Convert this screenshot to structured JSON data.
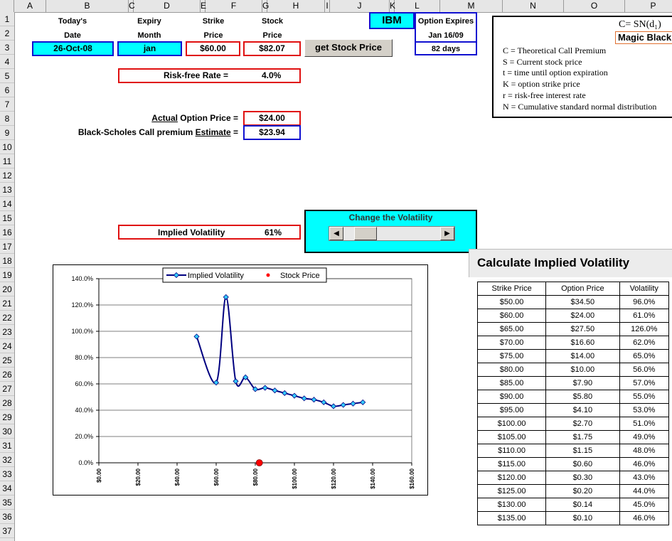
{
  "columns": [
    "A",
    "B",
    "C",
    "D",
    "E",
    "F",
    "G",
    "H",
    "I",
    "J",
    "K",
    "L",
    "M",
    "N",
    "O",
    "P"
  ],
  "rows": [
    "1",
    "2",
    "3",
    "4",
    "5",
    "6",
    "7",
    "8",
    "9",
    "10",
    "11",
    "12",
    "13",
    "14",
    "15",
    "16",
    "17",
    "18",
    "19",
    "20",
    "21",
    "22",
    "23",
    "24",
    "25",
    "26",
    "27",
    "28",
    "29",
    "30",
    "31",
    "32",
    "33",
    "34",
    "35",
    "36",
    "37"
  ],
  "inputs": {
    "today_label_1": "Today's",
    "today_label_2": "Date",
    "today_value": "26-Oct-08",
    "expiry_label_1": "Expiry",
    "expiry_label_2": "Month",
    "expiry_value": "jan",
    "strike_label_1": "Strike",
    "strike_label_2": "Price",
    "strike_value": "$60.00",
    "stock_label_1": "Stock",
    "stock_label_2": "Price",
    "stock_value": "$82.07",
    "get_stock_button": "get Stock Price",
    "ticker": "IBM",
    "option_expires_label": "Option Expires",
    "option_expires_date": "Jan 16/09",
    "days_remaining": "82 days",
    "risk_free_label": "Risk-free Rate =",
    "risk_free_value": "4.0%",
    "actual_label_underlined": "Actual",
    "actual_label_rest": " Option Price =",
    "actual_value": "$24.00",
    "bs_label_prefix": "Black-Scholes Call premium ",
    "bs_label_underlined": "Estimate",
    "bs_label_suffix": " =",
    "bs_value": "$23.94",
    "implied_vol_label": "Implied Volatility",
    "implied_vol_value": "61%"
  },
  "formula_box": {
    "formula": "C= SN(d₁)",
    "magic_label": "Magic Black",
    "legend": [
      "C = Theoretical Call Premium",
      "S = Current stock price",
      "t  = time until option expiration",
      "K = option strike price",
      "r  = risk-free interest rate",
      "N = Cumulative standard normal distribution"
    ]
  },
  "volatility_control": {
    "title": "Change the Volatility",
    "left_arrow": "◀",
    "right_arrow": "▶",
    "thumb_fraction": 0.14
  },
  "calc_title": "Calculate Implied Volatility",
  "table": {
    "headers": [
      "Strike Price",
      "Option Price",
      "Volatility"
    ],
    "rows": [
      [
        "$50.00",
        "$34.50",
        "96.0%"
      ],
      [
        "$60.00",
        "$24.00",
        "61.0%"
      ],
      [
        "$65.00",
        "$27.50",
        "126.0%"
      ],
      [
        "$70.00",
        "$16.60",
        "62.0%"
      ],
      [
        "$75.00",
        "$14.00",
        "65.0%"
      ],
      [
        "$80.00",
        "$10.00",
        "56.0%"
      ],
      [
        "$85.00",
        "$7.90",
        "57.0%"
      ],
      [
        "$90.00",
        "$5.80",
        "55.0%"
      ],
      [
        "$95.00",
        "$4.10",
        "53.0%"
      ],
      [
        "$100.00",
        "$2.70",
        "51.0%"
      ],
      [
        "$105.00",
        "$1.75",
        "49.0%"
      ],
      [
        "$110.00",
        "$1.15",
        "48.0%"
      ],
      [
        "$115.00",
        "$0.60",
        "46.0%"
      ],
      [
        "$120.00",
        "$0.30",
        "43.0%"
      ],
      [
        "$125.00",
        "$0.20",
        "44.0%"
      ],
      [
        "$130.00",
        "$0.14",
        "45.0%"
      ],
      [
        "$135.00",
        "$0.10",
        "46.0%"
      ]
    ]
  },
  "chart_data": {
    "type": "line",
    "xlim": [
      0,
      160
    ],
    "ylim": [
      0,
      140
    ],
    "x_ticks": [
      "$0.00",
      "$20.00",
      "$40.00",
      "$60.00",
      "$80.00",
      "$100.00",
      "$120.00",
      "$140.00",
      "$160.00"
    ],
    "x_tick_values": [
      0,
      20,
      40,
      60,
      80,
      100,
      120,
      140,
      160
    ],
    "y_ticks": [
      "0.0%",
      "20.0%",
      "40.0%",
      "60.0%",
      "80.0%",
      "100.0%",
      "120.0%",
      "140.0%"
    ],
    "y_tick_values": [
      0,
      20,
      40,
      60,
      80,
      100,
      120,
      140
    ],
    "grid": "horizontal",
    "legend_position": "top",
    "series": [
      {
        "name": "Implied Volatility",
        "color": "#000080",
        "marker_color": "#33ccff",
        "x": [
          50,
          60,
          65,
          70,
          75,
          80,
          85,
          90,
          95,
          100,
          105,
          110,
          115,
          120,
          125,
          130,
          135
        ],
        "y": [
          96,
          61,
          126,
          62,
          65,
          56,
          57,
          55,
          53,
          51,
          49,
          48,
          46,
          43,
          44,
          45,
          46
        ]
      },
      {
        "name": "Stock Price",
        "color": "#ff0000",
        "x": [
          82.07
        ],
        "y": [
          0
        ]
      }
    ]
  }
}
